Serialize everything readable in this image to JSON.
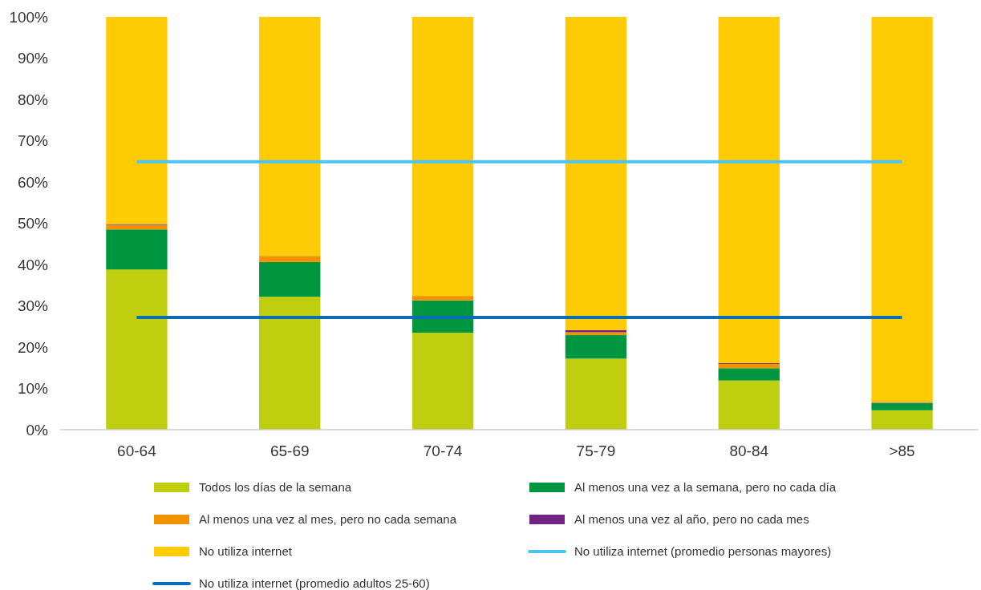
{
  "chart_data": {
    "type": "bar",
    "stacked": true,
    "categories": [
      "60-64",
      "65-69",
      "70-74",
      "75-79",
      "80-84",
      ">85"
    ],
    "series": [
      {
        "name": "Todos los días de la semana",
        "color": "#bfce0f",
        "values": [
          38.8,
          32.2,
          23.5,
          17.2,
          11.9,
          4.7
        ]
      },
      {
        "name": "Al menos una vez a la semana, pero no cada día",
        "color": "#009640",
        "values": [
          9.7,
          8.4,
          7.8,
          5.7,
          3.0,
          1.8
        ]
      },
      {
        "name": "Al menos una vez al mes, pero no cada semana",
        "color": "#f39200",
        "values": [
          1.1,
          1.5,
          1.1,
          0.7,
          1.0,
          0.1
        ]
      },
      {
        "name": "Al menos una vez al año, pero no cada mes",
        "color": "#6f2382",
        "values": [
          0.2,
          null,
          null,
          0.5,
          0.2,
          0.1
        ]
      },
      {
        "name": "No utiliza internet",
        "color": "#ffcb05",
        "values": [
          50.2,
          57.9,
          67.6,
          75.9,
          83.9,
          93.3
        ]
      }
    ],
    "ref_lines": [
      {
        "axis": "y",
        "value": 64.9,
        "label": "No utiliza internet (promedio personas mayores)",
        "color": "#4fc3f0"
      },
      {
        "axis": "y",
        "value": 27.2,
        "label": "No utiliza internet (promedio adultos 25-60)",
        "color": "#0a6db5"
      }
    ],
    "ylim": [
      0,
      100
    ],
    "yticks": [
      {
        "value": 0,
        "label": "0%"
      },
      {
        "value": 10,
        "label": "10%"
      },
      {
        "value": 20,
        "label": "20%"
      },
      {
        "value": 30,
        "label": "30%"
      },
      {
        "value": 40,
        "label": "40%"
      },
      {
        "value": 50,
        "label": "50%"
      },
      {
        "value": 60,
        "label": "60%"
      },
      {
        "value": 70,
        "label": "70%"
      },
      {
        "value": 80,
        "label": "80%"
      },
      {
        "value": 90,
        "label": "90%"
      },
      {
        "value": 100,
        "label": "100%"
      }
    ],
    "legend": "bottom"
  }
}
